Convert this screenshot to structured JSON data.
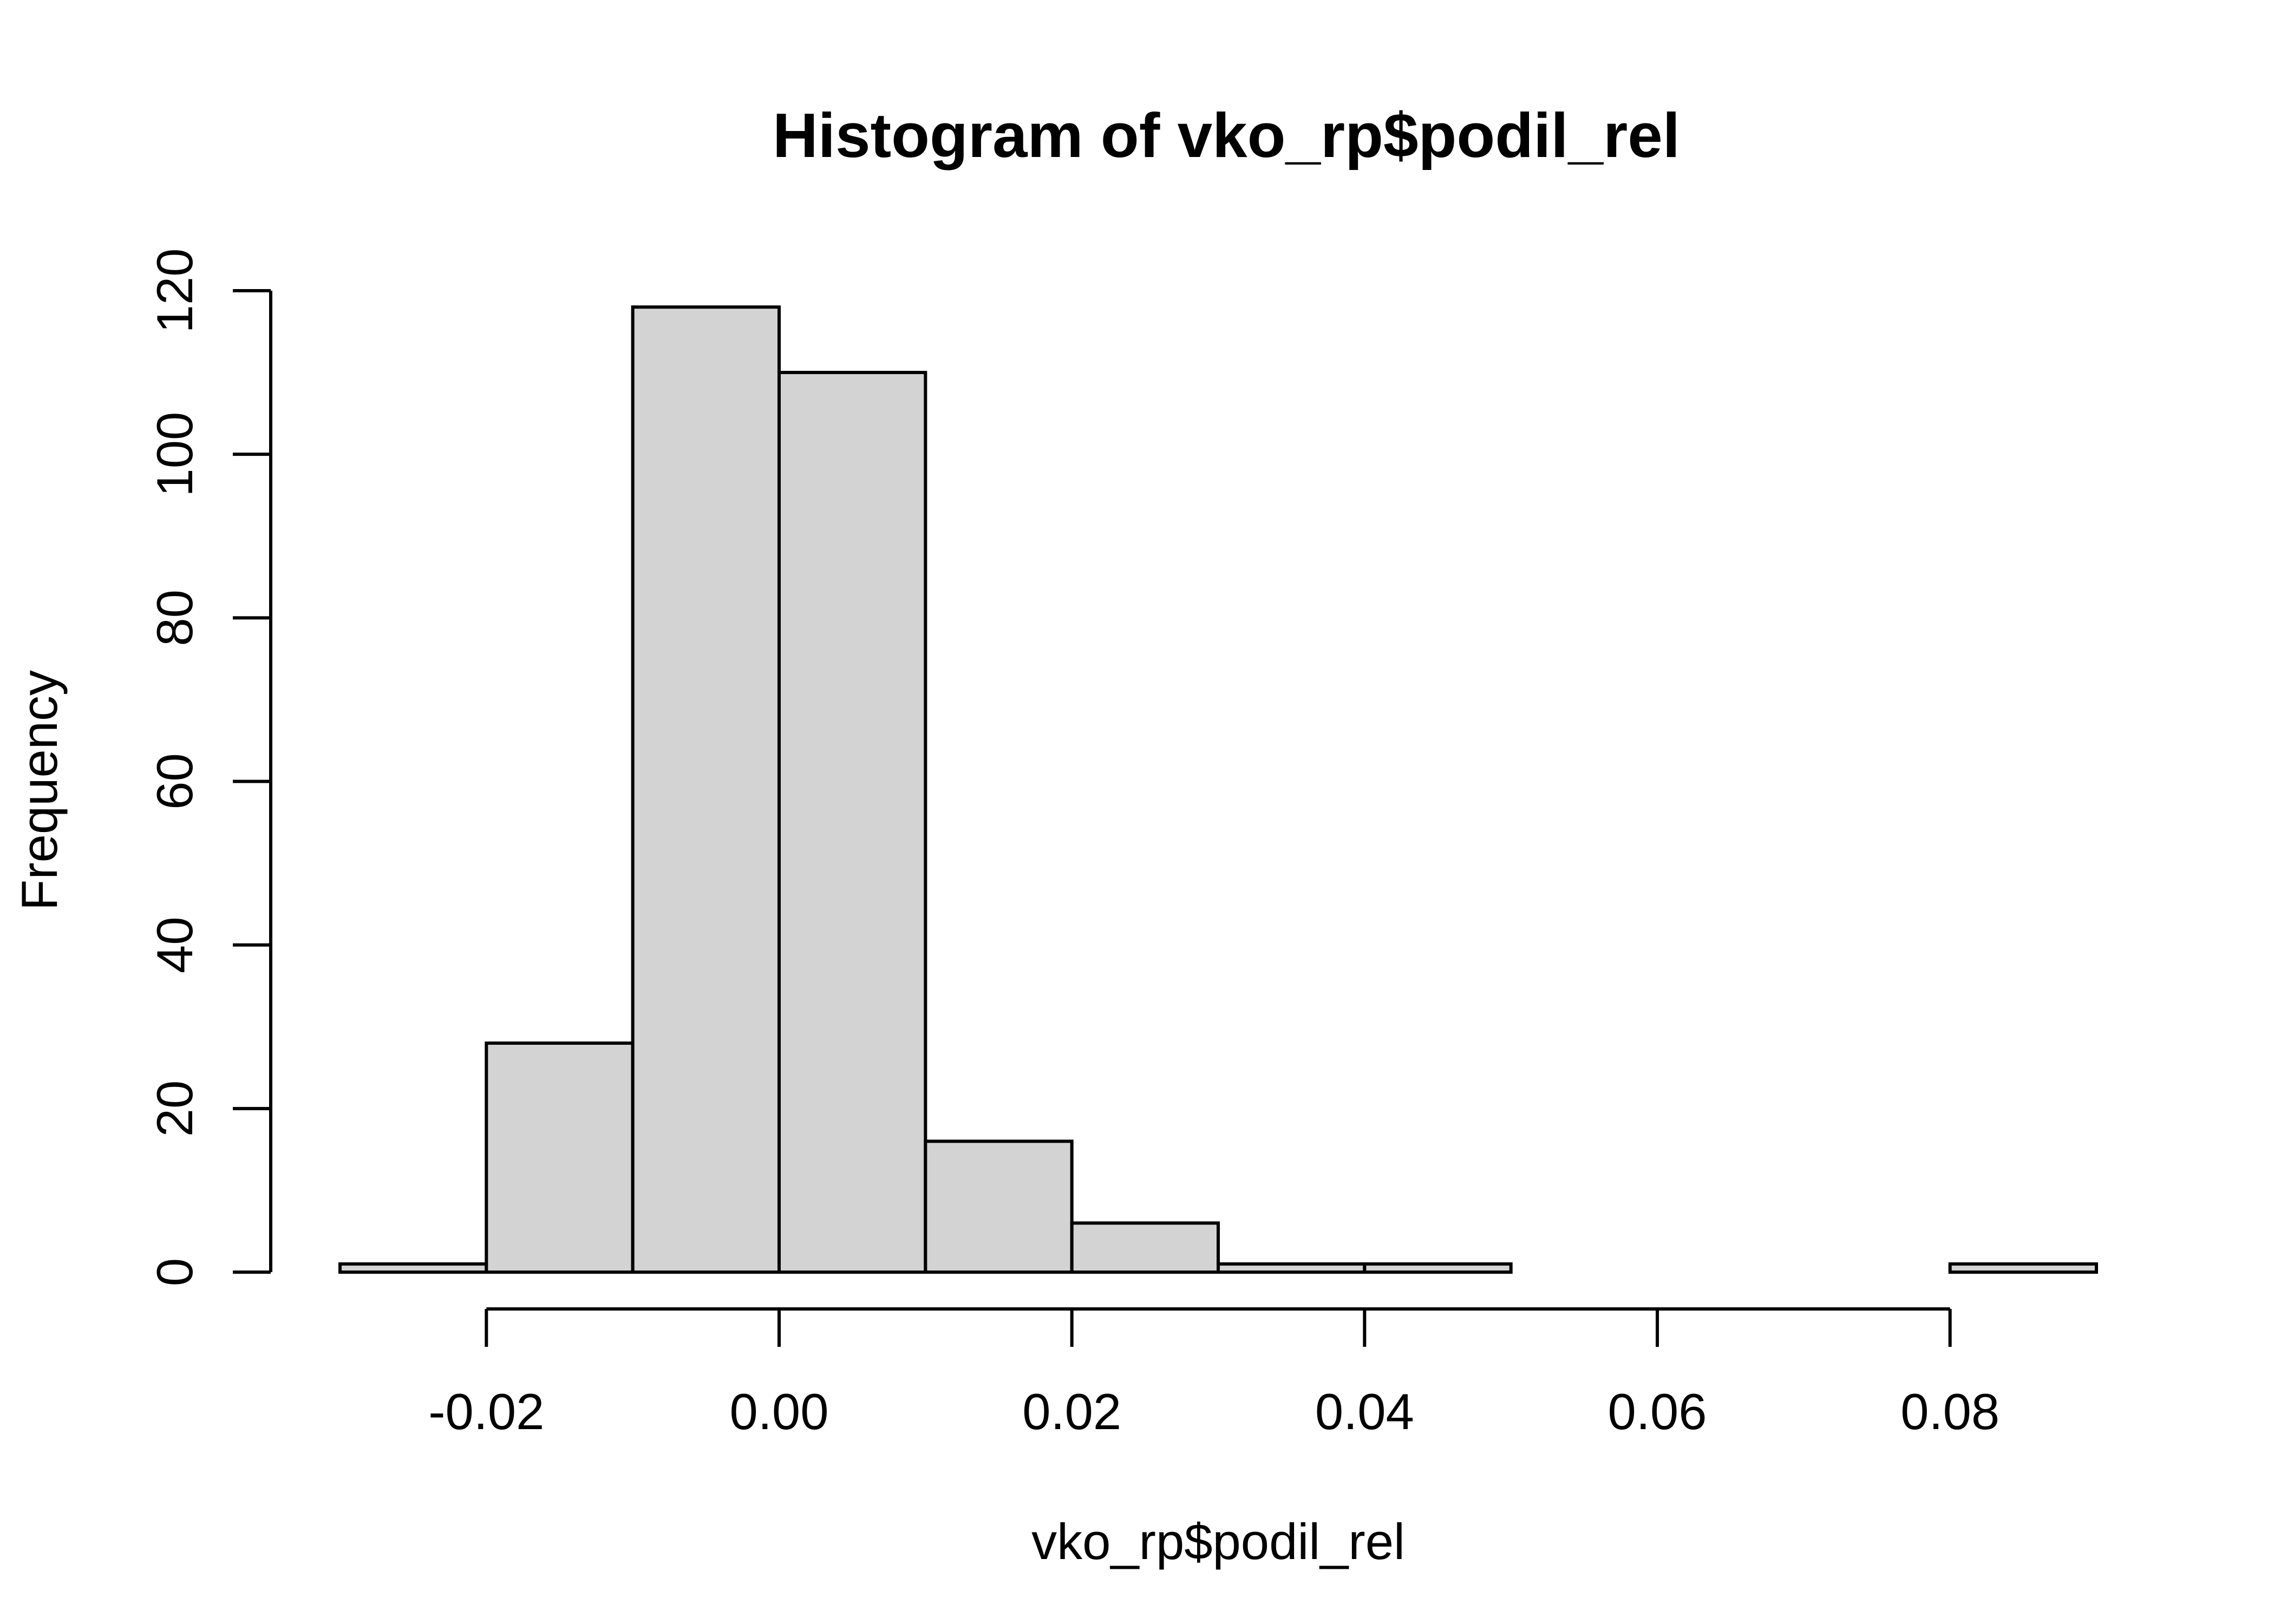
{
  "chart_data": {
    "type": "bar",
    "title": "Histogram of vko_rp$podil_rel",
    "xlabel": "vko_rp$podil_rel",
    "ylabel": "Frequency",
    "bins": [
      {
        "start": -0.03,
        "end": -0.02,
        "count": 1
      },
      {
        "start": -0.02,
        "end": -0.01,
        "count": 28
      },
      {
        "start": -0.01,
        "end": 0.0,
        "count": 118
      },
      {
        "start": 0.0,
        "end": 0.01,
        "count": 110
      },
      {
        "start": 0.01,
        "end": 0.02,
        "count": 16
      },
      {
        "start": 0.02,
        "end": 0.03,
        "count": 6
      },
      {
        "start": 0.03,
        "end": 0.04,
        "count": 1
      },
      {
        "start": 0.04,
        "end": 0.05,
        "count": 1
      },
      {
        "start": 0.05,
        "end": 0.06,
        "count": 0
      },
      {
        "start": 0.06,
        "end": 0.07,
        "count": 0
      },
      {
        "start": 0.07,
        "end": 0.08,
        "count": 0
      },
      {
        "start": 0.08,
        "end": 0.09,
        "count": 1
      }
    ],
    "xlim": [
      -0.03,
      0.09
    ],
    "ylim": [
      0,
      120
    ],
    "x_ticks": [
      -0.02,
      0.0,
      0.02,
      0.04,
      0.06,
      0.08
    ],
    "x_tick_labels": [
      "-0.02",
      "0.00",
      "0.02",
      "0.04",
      "0.06",
      "0.08"
    ],
    "y_ticks": [
      0,
      20,
      40,
      60,
      80,
      100,
      120
    ],
    "y_tick_labels": [
      "0",
      "20",
      "40",
      "60",
      "80",
      "100",
      "120"
    ],
    "grid": false,
    "bar_fill": "#d3d3d3",
    "bar_stroke": "#000000"
  }
}
